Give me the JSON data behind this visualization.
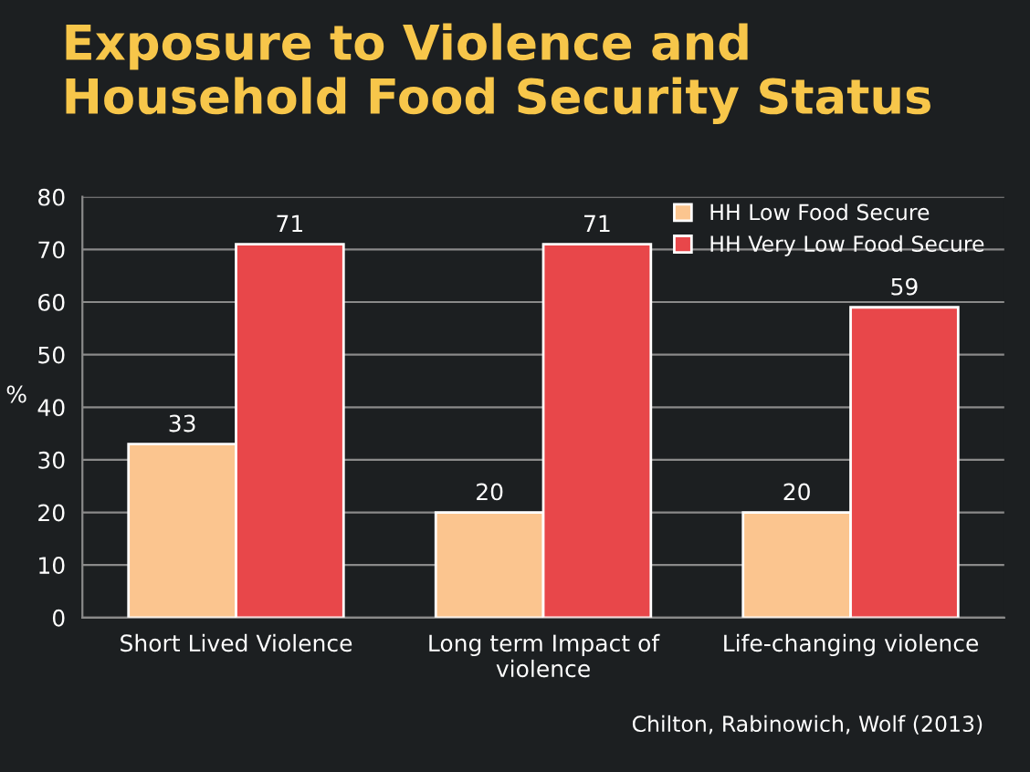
{
  "chart_data": {
    "type": "bar",
    "title": "Exposure to Violence and Household Food Security Status",
    "ylabel": "%",
    "categories": [
      "Short Lived Violence",
      "Long term Impact of\nviolence",
      "Life-changing violence"
    ],
    "series": [
      {
        "name": "HH Low Food Secure",
        "color": "#fbc58f",
        "values": [
          33,
          20,
          20
        ]
      },
      {
        "name": "HH Very Low Food Secure",
        "color": "#e8474a",
        "values": [
          71,
          71,
          59
        ]
      }
    ],
    "ylim": [
      0,
      80
    ],
    "yticks": [
      0,
      10,
      20,
      30,
      40,
      50,
      60,
      70,
      80
    ],
    "grid": "y",
    "legend": "top right",
    "data_labels": true,
    "annotations": [
      "Chilton, Rabinowich, Wolf (2013)"
    ]
  }
}
